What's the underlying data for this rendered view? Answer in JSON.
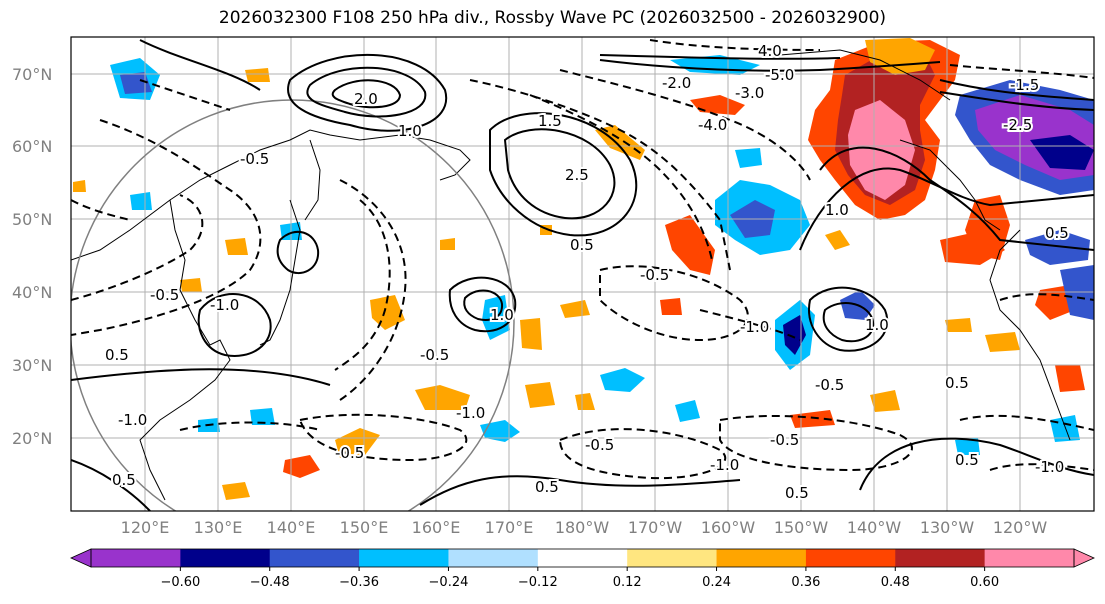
{
  "title": "2026032300 F108 250 hPa div., Rossby Wave PC (2026032500 - 2026032900)",
  "lat_labels": [
    "70°N",
    "60°N",
    "50°N",
    "40°N",
    "30°N",
    "20°N"
  ],
  "lon_labels": [
    "120°E",
    "130°E",
    "140°E",
    "150°E",
    "160°E",
    "170°E",
    "180°W",
    "170°W",
    "160°W",
    "150°W",
    "140°W",
    "130°W",
    "120°W"
  ],
  "colorbar": {
    "colors": [
      "#9933cc",
      "#00008b",
      "#3355cc",
      "#00bfff",
      "#b0e0ff",
      "#ffffff",
      "#ffe680",
      "#ffa500",
      "#ff4500",
      "#b22222",
      "#ff88aa"
    ],
    "ticks": [
      "−0.60",
      "−0.48",
      "−0.36",
      "−0.24",
      "−0.12",
      "0.12",
      "0.24",
      "0.36",
      "0.48",
      "0.60"
    ]
  },
  "contour_labels": [
    "1.0",
    "-0.5",
    "2.0",
    "-1.0",
    "0.5",
    "-4.0",
    "-3.0",
    "-2.0",
    "4.0",
    "-5.0",
    "1.5",
    "-1.5",
    "2.5",
    "-2.5",
    "0.5",
    "-0.5",
    "1.0",
    "-1.0",
    "0.5",
    "-0.5",
    "1.0",
    "-1.0",
    "-0.5",
    "0.5",
    "-0.5",
    "-1.0",
    "0.5",
    "-0.5",
    "0.5",
    "-0.5",
    "-1.0",
    "0.5",
    "-1.0",
    "0.5",
    "1.0",
    "-0.5"
  ]
}
